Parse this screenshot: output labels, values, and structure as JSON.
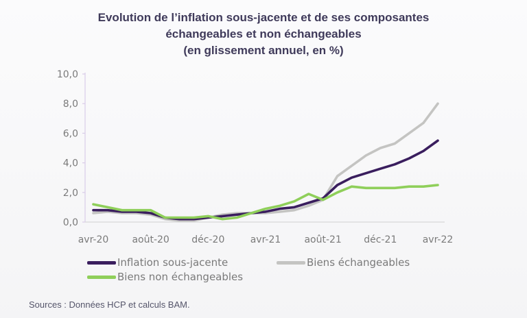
{
  "title": {
    "line1": "Evolution de l’inflation sous-jacente et de ses composantes",
    "line2": "échangeables et non échangeables",
    "line3": "(en glissement annuel, en %)"
  },
  "sources": "Sources : Données HCP et calculs BAM.",
  "colors": {
    "inflation": "#3a1e5e",
    "echangeables": "#c4c4c2",
    "non_echangeables": "#8fcf5a",
    "axis": "#d9cce8",
    "background": "#fbfbfc"
  },
  "chart_data": {
    "type": "line",
    "title": "Evolution de l’inflation sous-jacente et de ses composantes échangeables et non échangeables (en glissement annuel, en %)",
    "xlabel": "",
    "ylabel": "",
    "ylim": [
      0,
      10
    ],
    "yticks": [
      "0,0",
      "2,0",
      "4,0",
      "6,0",
      "8,0",
      "10,0"
    ],
    "ytick_values": [
      0,
      2,
      4,
      6,
      8,
      10
    ],
    "x": [
      "avr-20",
      "mai-20",
      "juin-20",
      "juil-20",
      "août-20",
      "sept-20",
      "oct-20",
      "nov-20",
      "déc-20",
      "janv-21",
      "févr-21",
      "mars-21",
      "avr-21",
      "mai-21",
      "juin-21",
      "juil-21",
      "août-21",
      "sept-21",
      "oct-21",
      "nov-21",
      "déc-21",
      "janv-22",
      "févr-22",
      "mars-22",
      "avr-22"
    ],
    "xtick_labels": [
      "avr-20",
      "août-20",
      "déc-20",
      "avr-21",
      "août-21",
      "déc-21",
      "avr-22"
    ],
    "xtick_indices": [
      0,
      4,
      8,
      12,
      16,
      20,
      24
    ],
    "grid": false,
    "legend_position": "bottom",
    "series": [
      {
        "name": "Inflation sous-jacente",
        "key": "inflation",
        "values": [
          0.8,
          0.8,
          0.7,
          0.7,
          0.6,
          0.3,
          0.2,
          0.2,
          0.3,
          0.4,
          0.5,
          0.6,
          0.7,
          0.9,
          1.0,
          1.3,
          1.6,
          2.5,
          3.0,
          3.3,
          3.6,
          3.9,
          4.3,
          4.8,
          5.5
        ]
      },
      {
        "name": "Biens échangeables",
        "key": "echangeables",
        "values": [
          0.6,
          0.7,
          0.6,
          0.6,
          0.5,
          0.2,
          0.1,
          0.1,
          0.3,
          0.5,
          0.6,
          0.6,
          0.6,
          0.7,
          0.8,
          1.1,
          1.5,
          3.1,
          3.8,
          4.5,
          5.0,
          5.3,
          6.0,
          6.7,
          8.0
        ]
      },
      {
        "name": "Biens non échangeables",
        "key": "non_echangeables",
        "values": [
          1.2,
          1.0,
          0.8,
          0.8,
          0.8,
          0.3,
          0.3,
          0.3,
          0.4,
          0.2,
          0.3,
          0.6,
          0.9,
          1.1,
          1.4,
          1.9,
          1.5,
          2.0,
          2.4,
          2.3,
          2.3,
          2.3,
          2.4,
          2.4,
          2.5
        ]
      }
    ]
  },
  "legend": {
    "items": [
      {
        "label": "Inflation sous-jacente",
        "key": "inflation"
      },
      {
        "label": "Biens échangeables",
        "key": "echangeables"
      },
      {
        "label": "Biens non échangeables",
        "key": "non_echangeables"
      }
    ]
  }
}
